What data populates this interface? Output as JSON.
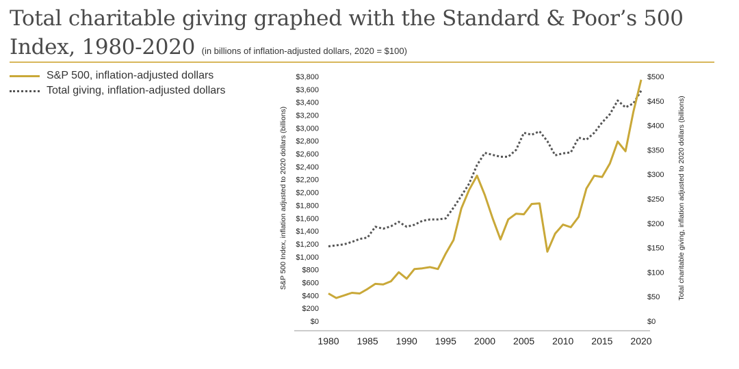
{
  "title": {
    "line1": "Total charitable giving graphed with the Standard & Poor’s 500",
    "line2": "Index, 1980-2020",
    "subtitle": "(in billions of inflation-adjusted dollars, 2020 = $100)"
  },
  "colors": {
    "sp500": "#c9a838",
    "giving": "#555555",
    "rule": "#d7b65a"
  },
  "chart_data": {
    "type": "line",
    "legend_position": "top-left",
    "grid": false,
    "series": [
      {
        "name": "S&P 500, inflation-adjusted dollars",
        "axis": "left",
        "style": "solid",
        "x": [
          1980,
          1981,
          1982,
          1983,
          1984,
          1985,
          1986,
          1987,
          1988,
          1989,
          1990,
          1991,
          1992,
          1993,
          1994,
          1995,
          1996,
          1997,
          1998,
          1999,
          2000,
          2001,
          2002,
          2003,
          2004,
          2005,
          2006,
          2007,
          2008,
          2009,
          2010,
          2011,
          2012,
          2013,
          2014,
          2015,
          2016,
          2017,
          2018,
          2019,
          2020
        ],
        "values": [
          430,
          360,
          400,
          440,
          430,
          500,
          580,
          570,
          620,
          760,
          660,
          810,
          820,
          840,
          810,
          1050,
          1260,
          1750,
          2040,
          2260,
          1960,
          1600,
          1270,
          1580,
          1670,
          1660,
          1820,
          1830,
          1080,
          1360,
          1500,
          1460,
          1620,
          2060,
          2260,
          2240,
          2450,
          2790,
          2640,
          3250,
          3750
        ]
      },
      {
        "name": "Total giving, inflation-adjusted dollars",
        "axis": "right",
        "style": "dotted",
        "x": [
          1980,
          1981,
          1982,
          1983,
          1984,
          1985,
          1986,
          1987,
          1988,
          1989,
          1990,
          1991,
          1992,
          1993,
          1994,
          1995,
          1996,
          1997,
          1998,
          1999,
          2000,
          2001,
          2002,
          2003,
          2004,
          2005,
          2006,
          2007,
          2008,
          2009,
          2010,
          2011,
          2012,
          2013,
          2014,
          2015,
          2016,
          2017,
          2018,
          2019,
          2020
        ],
        "values": [
          153,
          155,
          157,
          162,
          168,
          171,
          193,
          189,
          194,
          203,
          193,
          197,
          205,
          208,
          208,
          210,
          232,
          256,
          281,
          319,
          344,
          340,
          336,
          336,
          350,
          385,
          381,
          388,
          368,
          339,
          343,
          345,
          375,
          371,
          385,
          406,
          423,
          451,
          437,
          445,
          471
        ]
      }
    ],
    "y_left": {
      "label": "S&P 500 Index, inflation adjusted to 2020 dollars (billions)",
      "min": 0,
      "max": 3800,
      "ticks": [
        "$0",
        "$200",
        "$400",
        "$600",
        "$800",
        "$1,000",
        "$1,200",
        "$1,400",
        "$1,600",
        "$1,800",
        "$2,000",
        "$2,200",
        "$2,400",
        "$2,600",
        "$2,800",
        "$3,000",
        "$3,200",
        "$3,400",
        "$3,600",
        "$3,800"
      ]
    },
    "y_right": {
      "label": "Total charitable giving, inflation adjusted to 2020 dollars (billions)",
      "min": 0,
      "max": 500,
      "ticks": [
        "$0",
        "$50",
        "$100",
        "$150",
        "$200",
        "$250",
        "$300",
        "$350",
        "$400",
        "$450",
        "$500"
      ]
    },
    "x_axis": {
      "min": 1980,
      "max": 2020,
      "ticks": [
        "1980",
        "1985",
        "1990",
        "1995",
        "2000",
        "2005",
        "2010",
        "2015",
        "2020"
      ]
    }
  }
}
